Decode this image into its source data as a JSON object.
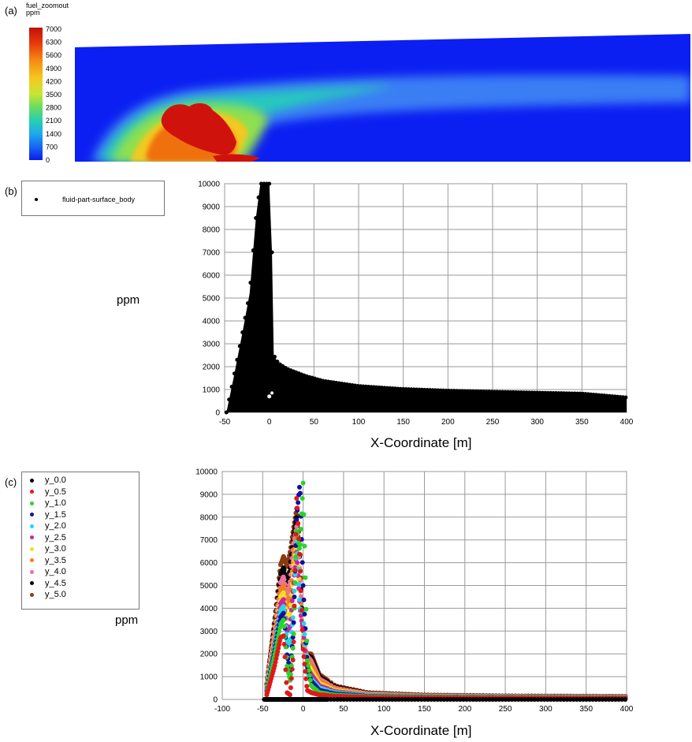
{
  "panels": {
    "a": {
      "label": "(a)",
      "colorbar_title": "fuel_zoomout",
      "colorbar_unit": "ppm",
      "colorbar_ticks": [
        "7000",
        "6300",
        "5600",
        "4900",
        "4200",
        "3500",
        "2800",
        "2100",
        "1400",
        "700",
        "0"
      ],
      "colorbar_colors": [
        "#c8110a",
        "#e63b0c",
        "#f47a10",
        "#f7b81a",
        "#e3e32a",
        "#9ee34a",
        "#4fd880",
        "#22c6c2",
        "#1a8ef0",
        "#1a4ef5",
        "#0a1cf0"
      ]
    },
    "b": {
      "label": "(b)",
      "legend": [
        "fluid-part-surface_body"
      ],
      "ylabel": "ppm",
      "xlabel": "X-Coordinate [m]"
    },
    "c": {
      "label": "(c)",
      "ylabel": "ppm",
      "xlabel": "X-Coordinate [m]"
    }
  },
  "chart_data": [
    {
      "type": "scatter",
      "panel": "b",
      "xlabel": "X-Coordinate [m]",
      "ylabel": "ppm",
      "xlim": [
        -50,
        400
      ],
      "ylim": [
        0,
        10000
      ],
      "xticks": [
        -50,
        0,
        50,
        100,
        150,
        200,
        250,
        300,
        350,
        400
      ],
      "yticks": [
        0,
        1000,
        2000,
        3000,
        4000,
        5000,
        6000,
        7000,
        8000,
        9000,
        10000
      ],
      "grid": true,
      "legend_position": "top-left",
      "series": [
        {
          "name": "fluid-part-surface_body",
          "color": "#000000",
          "upper_envelope": {
            "x": [
              -48,
              -40,
              -30,
              -22,
              -15,
              -10,
              -5,
              0,
              3,
              5,
              10,
              20,
              40,
              60,
              100,
              150,
              200,
              250,
              300,
              350,
              400
            ],
            "y": [
              0,
              1500,
              3500,
              5200,
              8500,
              10000,
              10000,
              10000,
              7000,
              2500,
              2150,
              1900,
              1600,
              1380,
              1150,
              1020,
              950,
              900,
              860,
              820,
              650
            ]
          },
          "lower_envelope": {
            "x": [
              -48,
              -40,
              -30,
              -20,
              -10,
              0,
              10,
              20,
              50,
              100,
              200,
              300,
              400
            ],
            "y": [
              0,
              0,
              0,
              0,
              0,
              0,
              0,
              0,
              0,
              0,
              0,
              0,
              0
            ]
          }
        }
      ]
    },
    {
      "type": "scatter",
      "panel": "c",
      "xlabel": "X-Coordinate [m]",
      "ylabel": "ppm",
      "xlim": [
        -100,
        400
      ],
      "ylim": [
        0,
        10000
      ],
      "xticks": [
        -100,
        -50,
        0,
        50,
        100,
        150,
        200,
        250,
        300,
        350,
        400
      ],
      "yticks": [
        0,
        1000,
        2000,
        3000,
        4000,
        5000,
        6000,
        7000,
        8000,
        9000,
        10000
      ],
      "grid": true,
      "legend_position": "top-left",
      "series": [
        {
          "name": "y_0.0",
          "color": "#000000",
          "x": [
            -48,
            -40,
            -30,
            -20,
            -10,
            0,
            20,
            50,
            100,
            200,
            300,
            400
          ],
          "y": [
            0,
            0,
            0,
            0,
            0,
            0,
            0,
            0,
            0,
            0,
            0,
            0
          ]
        },
        {
          "name": "y_0.5",
          "color": "#e01818",
          "x": [
            -45,
            -35,
            -28,
            -24,
            -20,
            -16,
            -12,
            -8,
            -4,
            0,
            5,
            10,
            20,
            40,
            80,
            150,
            250,
            400
          ],
          "y": [
            200,
            1500,
            2700,
            2800,
            300,
            200,
            2000,
            9000,
            6000,
            2200,
            400,
            300,
            200,
            150,
            100,
            80,
            60,
            50
          ]
        },
        {
          "name": "y_1.0",
          "color": "#2ad22a",
          "x": [
            -45,
            -35,
            -28,
            -24,
            -20,
            -16,
            -12,
            -8,
            -4,
            0,
            5,
            10,
            20,
            40,
            80,
            150,
            250,
            400
          ],
          "y": [
            300,
            2000,
            3300,
            3500,
            1500,
            800,
            2500,
            7500,
            6500,
            9500,
            1800,
            600,
            300,
            200,
            130,
            100,
            80,
            60
          ]
        },
        {
          "name": "y_1.5",
          "color": "#1010a0",
          "x": [
            -45,
            -35,
            -28,
            -24,
            -20,
            -16,
            -12,
            -8,
            -4,
            0,
            5,
            10,
            20,
            40,
            80,
            150,
            250,
            400
          ],
          "y": [
            350,
            2200,
            3600,
            3800,
            2000,
            1200,
            3000,
            8000,
            9500,
            5000,
            1500,
            800,
            400,
            250,
            150,
            110,
            90,
            70
          ]
        },
        {
          "name": "y_2.0",
          "color": "#22d8e8",
          "x": [
            -45,
            -35,
            -28,
            -24,
            -20,
            -16,
            -12,
            -8,
            -4,
            0,
            5,
            10,
            20,
            40,
            80,
            150,
            250,
            400
          ],
          "y": [
            400,
            2400,
            3900,
            4100,
            2600,
            2400,
            3800,
            7000,
            4000,
            3800,
            1200,
            900,
            500,
            300,
            180,
            130,
            100,
            80
          ]
        },
        {
          "name": "y_2.5",
          "color": "#d020a8",
          "x": [
            -45,
            -35,
            -28,
            -24,
            -20,
            -16,
            -12,
            -8,
            -4,
            0,
            5,
            10,
            20,
            40,
            80,
            150,
            250,
            400
          ],
          "y": [
            450,
            2600,
            4200,
            4400,
            3000,
            3200,
            5000,
            6500,
            4000,
            3000,
            1400,
            1100,
            600,
            350,
            200,
            140,
            110,
            90
          ]
        },
        {
          "name": "y_3.0",
          "color": "#f0e020",
          "x": [
            -45,
            -35,
            -28,
            -24,
            -20,
            -16,
            -12,
            -8,
            -4,
            0,
            5,
            10,
            20,
            40,
            80,
            150,
            250,
            400
          ],
          "y": [
            500,
            2800,
            4500,
            4700,
            3500,
            3800,
            5800,
            6800,
            4500,
            2800,
            1600,
            1300,
            700,
            400,
            220,
            150,
            120,
            100
          ]
        },
        {
          "name": "y_3.5",
          "color": "#f08020",
          "x": [
            -45,
            -35,
            -28,
            -24,
            -20,
            -16,
            -12,
            -8,
            -4,
            0,
            5,
            10,
            20,
            40,
            80,
            150,
            250,
            400
          ],
          "y": [
            550,
            3000,
            4800,
            5000,
            4000,
            4500,
            6300,
            7300,
            5000,
            2600,
            1800,
            1500,
            800,
            450,
            240,
            160,
            130,
            110
          ]
        },
        {
          "name": "y_4.0",
          "color": "#f070a0",
          "x": [
            -45,
            -35,
            -28,
            -24,
            -20,
            -16,
            -12,
            -8,
            -4,
            0,
            5,
            10,
            20,
            40,
            80,
            150,
            250,
            400
          ],
          "y": [
            600,
            3200,
            5100,
            5400,
            4500,
            5200,
            6800,
            7600,
            5500,
            2500,
            1900,
            1700,
            900,
            500,
            260,
            170,
            140,
            120
          ]
        },
        {
          "name": "y_4.5",
          "color": "#000000",
          "x": [
            -45,
            -35,
            -28,
            -24,
            -20,
            -16,
            -12,
            -8,
            -4,
            0,
            5,
            10,
            20,
            40,
            80,
            150,
            250,
            400
          ],
          "y": [
            650,
            3400,
            5500,
            5800,
            5000,
            5800,
            7200,
            8000,
            6000,
            2400,
            1950,
            1850,
            1000,
            550,
            280,
            180,
            150,
            130
          ]
        },
        {
          "name": "y_5.0",
          "color": "#8b3a10",
          "x": [
            -45,
            -35,
            -28,
            -24,
            -20,
            -16,
            -12,
            -8,
            -4,
            0,
            5,
            10,
            20,
            40,
            80,
            150,
            250,
            400
          ],
          "y": [
            700,
            3600,
            5900,
            6300,
            5800,
            6500,
            7500,
            8400,
            6800,
            2300,
            2000,
            2000,
            1100,
            600,
            300,
            200,
            160,
            140
          ]
        }
      ]
    }
  ]
}
